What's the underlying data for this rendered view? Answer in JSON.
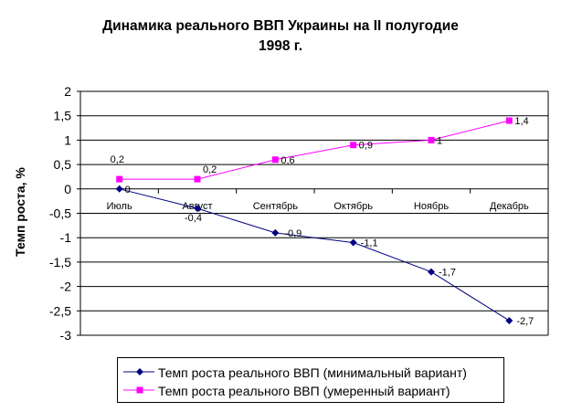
{
  "chart_data": {
    "type": "line",
    "title_lines": [
      "Динамика реального ВВП Украины на II полугодие",
      "1998 г."
    ],
    "xlabel": "",
    "ylabel": "Темп роста, %",
    "categories": [
      "Июль",
      "Август",
      "Сентябрь",
      "Октябрь",
      "Ноябрь",
      "Декабрь"
    ],
    "ylim": [
      -3,
      2
    ],
    "yticks": [
      2,
      1.5,
      1,
      0.5,
      0,
      -0.5,
      -1,
      -1.5,
      -2,
      -2.5,
      -3
    ],
    "ytick_labels": [
      "2",
      "1,5",
      "1",
      "0,5",
      "0",
      "-0,5",
      "-1",
      "-1,5",
      "-2",
      "-2,5",
      "-3"
    ],
    "grid": true,
    "legend_position": "bottom",
    "series": [
      {
        "name": "Темп роста реального ВВП (минимальный вариант)",
        "values": [
          0,
          -0.4,
          -0.9,
          -1.1,
          -1.7,
          -2.7
        ],
        "labels": [
          "0",
          "-0,4",
          "-0,9",
          "-1,1",
          "-1,7",
          "-2,7"
        ],
        "color": "#000080",
        "marker": "diamond"
      },
      {
        "name": "Темп роста реального ВВП (умеренный вариант)",
        "values": [
          0.2,
          0.2,
          0.6,
          0.9,
          1,
          1.4
        ],
        "labels": [
          "0,2",
          "0,2",
          "0,6",
          "0,9",
          "1",
          "1,4"
        ],
        "color": "#FF00FF",
        "marker": "square"
      }
    ]
  }
}
